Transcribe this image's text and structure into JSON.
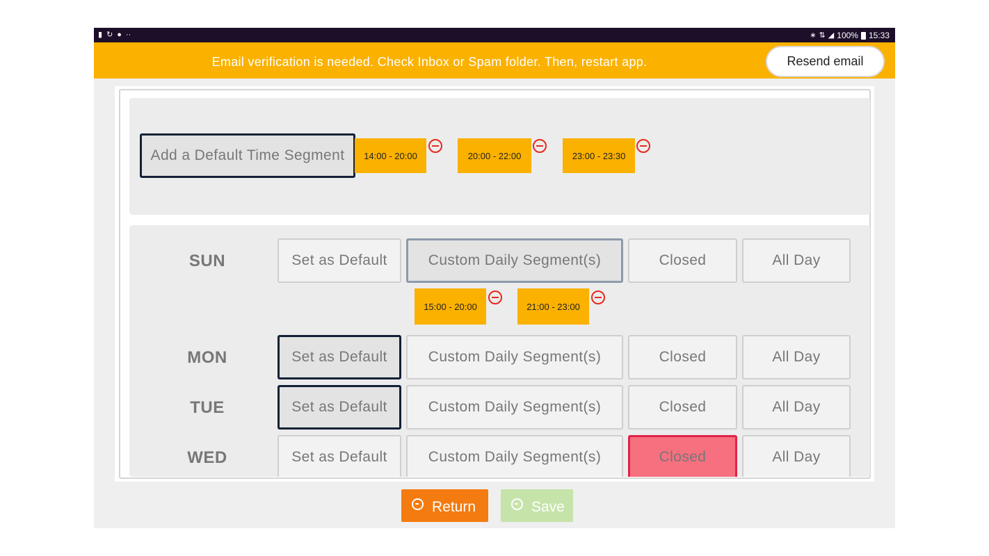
{
  "status_bar": {
    "left_icons": [
      "message-icon",
      "sync-icon",
      "keyhole-icon",
      "more-dots-icon"
    ],
    "right_icons": [
      "bluetooth-icon",
      "network-4g-icon",
      "signal-icon",
      "battery-icon"
    ],
    "battery": "100%",
    "time": "15:33"
  },
  "banner": {
    "message": "Email verification is needed. Check Inbox or Spam folder. Then, restart app.",
    "resend_label": "Resend email",
    "color": "#fbb100"
  },
  "default_segments": {
    "add_label": "Add a Default Time Segment",
    "segments": [
      "14:00 - 20:00",
      "20:00 - 22:00",
      "23:00 - 23:30"
    ]
  },
  "days": [
    {
      "label": "SUN",
      "options": [
        "Set as Default",
        "Custom Daily Segment(s)",
        "Closed",
        "All Day"
      ],
      "selected": "Custom Daily Segment(s)",
      "segments": [
        "15:00 - 20:00",
        "21:00 - 23:00"
      ]
    },
    {
      "label": "MON",
      "options": [
        "Set as Default",
        "Custom Daily Segment(s)",
        "Closed",
        "All Day"
      ],
      "selected": "Set as Default"
    },
    {
      "label": "TUE",
      "options": [
        "Set as Default",
        "Custom Daily Segment(s)",
        "Closed",
        "All Day"
      ],
      "selected": "Set as Default"
    },
    {
      "label": "WED",
      "options": [
        "Set as Default",
        "Custom Daily Segment(s)",
        "Closed",
        "All Day"
      ],
      "selected": "Closed"
    }
  ],
  "footer": {
    "return_label": "Return",
    "save_label": "Save",
    "return_color": "#f47b0f",
    "save_color": "#c6e3a9"
  }
}
